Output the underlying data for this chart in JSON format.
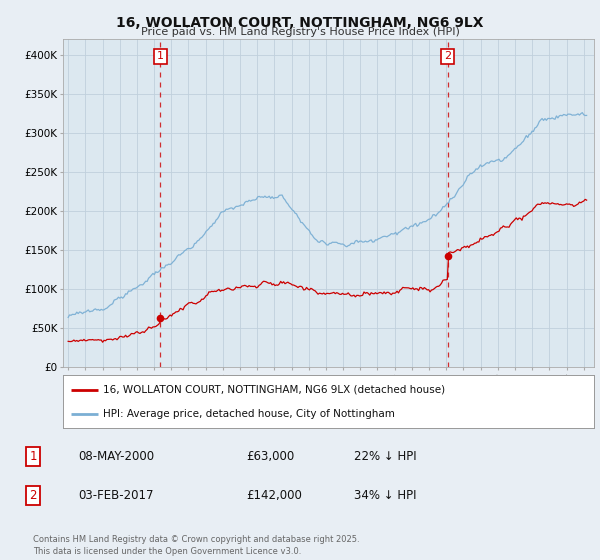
{
  "title": "16, WOLLATON COURT, NOTTINGHAM, NG6 9LX",
  "subtitle": "Price paid vs. HM Land Registry's House Price Index (HPI)",
  "ylim": [
    0,
    420000
  ],
  "yticks": [
    0,
    50000,
    100000,
    150000,
    200000,
    250000,
    300000,
    350000,
    400000
  ],
  "ytick_labels": [
    "£0",
    "£50K",
    "£100K",
    "£150K",
    "£200K",
    "£250K",
    "£300K",
    "£350K",
    "£400K"
  ],
  "xlim_start": 1994.7,
  "xlim_end": 2025.6,
  "purchase1_x": 2000.36,
  "purchase1_y": 63000,
  "purchase2_x": 2017.09,
  "purchase2_y": 142000,
  "property_line_color": "#cc0000",
  "hpi_line_color": "#7bafd4",
  "background_color": "#e8eef4",
  "plot_bg_color": "#dce8f0",
  "grid_color": "#c0d0dc",
  "legend_label_property": "16, WOLLATON COURT, NOTTINGHAM, NG6 9LX (detached house)",
  "legend_label_hpi": "HPI: Average price, detached house, City of Nottingham",
  "footer": "Contains HM Land Registry data © Crown copyright and database right 2025.\nThis data is licensed under the Open Government Licence v3.0.",
  "purchase1_date": "08-MAY-2000",
  "purchase1_price": "£63,000",
  "purchase1_hpi": "22% ↓ HPI",
  "purchase2_date": "03-FEB-2017",
  "purchase2_price": "£142,000",
  "purchase2_hpi": "34% ↓ HPI"
}
